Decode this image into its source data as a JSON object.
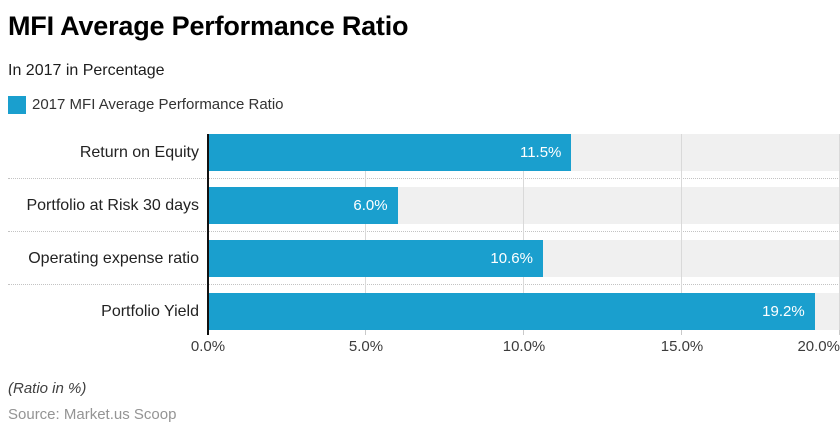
{
  "header": {
    "title": "MFI Average Performance Ratio",
    "subtitle": "In 2017 in Percentage"
  },
  "legend": {
    "label": "2017 MFI Average Performance Ratio",
    "swatch_color": "#1a9fce"
  },
  "chart_data": {
    "type": "bar",
    "orientation": "horizontal",
    "title": "MFI Average Performance Ratio",
    "subtitle": "In 2017 in Percentage",
    "series_name": "2017 MFI Average Performance Ratio",
    "categories": [
      "Return on Equity",
      "Portfolio at Risk 30 days",
      "Operating expense ratio",
      "Portfolio Yield"
    ],
    "values": [
      11.5,
      6.0,
      10.6,
      19.2
    ],
    "value_labels": [
      "11.5%",
      "6.0%",
      "10.6%",
      "19.2%"
    ],
    "xlim": [
      0,
      20
    ],
    "x_ticks": [
      "0.0%",
      "5.0%",
      "10.0%",
      "15.0%",
      "20.0%"
    ],
    "x_tick_values": [
      0,
      5,
      10,
      15,
      20
    ],
    "grid": true,
    "legend_position": "top-left",
    "bar_color": "#1a9fce",
    "track_color": "#f0f0f0",
    "xlabel": "",
    "ylabel": ""
  },
  "footer": {
    "note": "(Ratio in %)",
    "source": "Source: Market.us Scoop"
  }
}
